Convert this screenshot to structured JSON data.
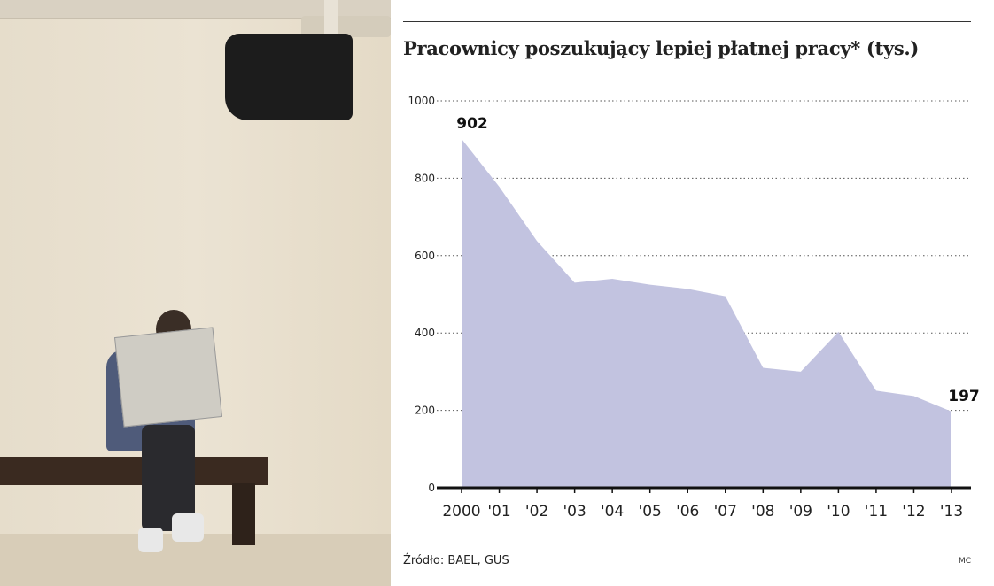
{
  "chart_data": {
    "type": "area",
    "title": "Pracownicy poszukujący lepiej płatnej pracy* (tys.)",
    "x": [
      "2000",
      "'01",
      "'02",
      "'03",
      "'04",
      "'05",
      "'06",
      "'07",
      "'08",
      "'09",
      "'10",
      "'11",
      "'12",
      "'13"
    ],
    "values": [
      902,
      778,
      638,
      530,
      540,
      525,
      514,
      495,
      310,
      300,
      403,
      251,
      237,
      197
    ],
    "yticks": [
      "0",
      "200",
      "400",
      "600",
      "800",
      "1000"
    ],
    "ylim": [
      0,
      1000
    ],
    "grid": "dotted horizontal",
    "annotations": [
      {
        "x": "2000",
        "label": "902"
      },
      {
        "x": "'13",
        "label": "197"
      }
    ],
    "fill_color": "#c2c3e0",
    "source": "Źródło: BAEL, GUS",
    "credit": "MC"
  }
}
